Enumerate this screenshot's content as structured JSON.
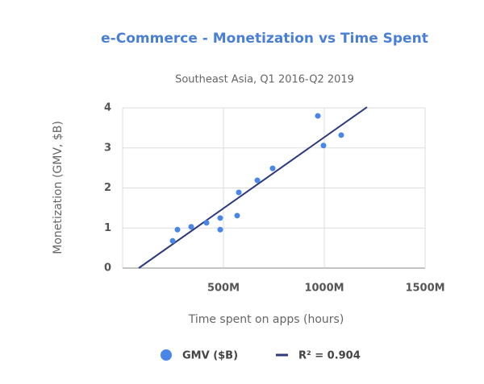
{
  "chart_data": {
    "type": "scatter",
    "title": "e-Commerce - Monetization vs Time Spent",
    "subtitle": "Southeast Asia, Q1 2016-Q2 2019",
    "x_label": "Time spent on apps (hours)",
    "y_label": "Monetization (GMV, $B)",
    "series": [
      {
        "name": "GMV ($B)",
        "color": "#4a86e8",
        "x": [
          248000000,
          272000000,
          340000000,
          416000000,
          484000000,
          484000000,
          568000000,
          576000000,
          668000000,
          744000000,
          968000000,
          996000000,
          1084000000
        ],
        "values": [
          0.68,
          0.96,
          1.03,
          1.13,
          1.25,
          0.96,
          1.31,
          1.89,
          2.19,
          2.49,
          3.8,
          3.06,
          3.32
        ]
      }
    ],
    "trendline": {
      "name": "R² = 0.904",
      "color": "#2e3a7e",
      "x": [
        80000000,
        1212000000
      ],
      "values": [
        0,
        4.02
      ]
    },
    "xlim": [
      0,
      1500000000
    ],
    "xticks": [
      {
        "value": 500000000,
        "label": "500M"
      },
      {
        "value": 1000000000,
        "label": "1000M"
      },
      {
        "value": 1500000000,
        "label": "1500M"
      }
    ],
    "ylim": [
      0,
      4
    ],
    "yticks": [
      0,
      1,
      2,
      3,
      4
    ],
    "grid": true
  }
}
